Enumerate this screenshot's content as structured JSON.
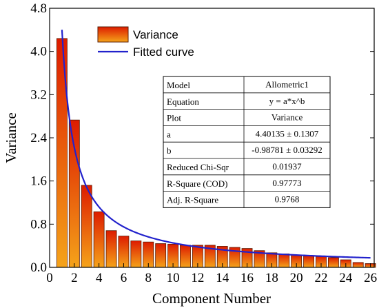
{
  "chart_data": {
    "type": "bar",
    "xlabel": "Component Number",
    "ylabel": "Variance",
    "xlim": [
      0,
      26.3
    ],
    "ylim": [
      0,
      4.8
    ],
    "x_ticks": [
      "0",
      "2",
      "4",
      "6",
      "8",
      "10",
      "12",
      "14",
      "16",
      "18",
      "20",
      "22",
      "24",
      "26"
    ],
    "y_ticks": [
      "0.0",
      "0.8",
      "1.6",
      "2.4",
      "3.2",
      "4.0",
      "4.8"
    ],
    "legend": {
      "position": "top-left",
      "bar_label": "Variance",
      "curve_label": "Fitted curve"
    },
    "series": [
      {
        "name": "Variance",
        "x": [
          1,
          2,
          3,
          4,
          5,
          6,
          7,
          8,
          9,
          10,
          11,
          12,
          13,
          14,
          15,
          16,
          17,
          18,
          19,
          20,
          21,
          22,
          23,
          24,
          25,
          26
        ],
        "values": [
          4.24,
          2.73,
          1.52,
          1.03,
          0.68,
          0.58,
          0.49,
          0.47,
          0.44,
          0.43,
          0.41,
          0.41,
          0.41,
          0.39,
          0.37,
          0.35,
          0.31,
          0.27,
          0.25,
          0.23,
          0.21,
          0.2,
          0.18,
          0.14,
          0.09,
          0.07
        ]
      },
      {
        "name": "Fitted curve",
        "model": "y = a*x^b",
        "a": 4.40135,
        "b": -0.98781,
        "x_range": [
          1,
          26
        ]
      }
    ],
    "colors": {
      "bar_top": "#dd1c00",
      "bar_bottom": "#f5a31a",
      "bar_edge": "#5a1a00",
      "curve": "#2222cc"
    },
    "stats_table": [
      [
        "Model",
        "Allometric1"
      ],
      [
        "Equation",
        "y = a*x^b"
      ],
      [
        "Plot",
        "Variance"
      ],
      [
        "a",
        "4.40135 ± 0.1307"
      ],
      [
        "b",
        "-0.98781 ± 0.03292"
      ],
      [
        "Reduced Chi-Sqr",
        "0.01937"
      ],
      [
        "R-Square (COD)",
        "0.97773"
      ],
      [
        "Adj. R-Square",
        "0.9768"
      ]
    ]
  }
}
